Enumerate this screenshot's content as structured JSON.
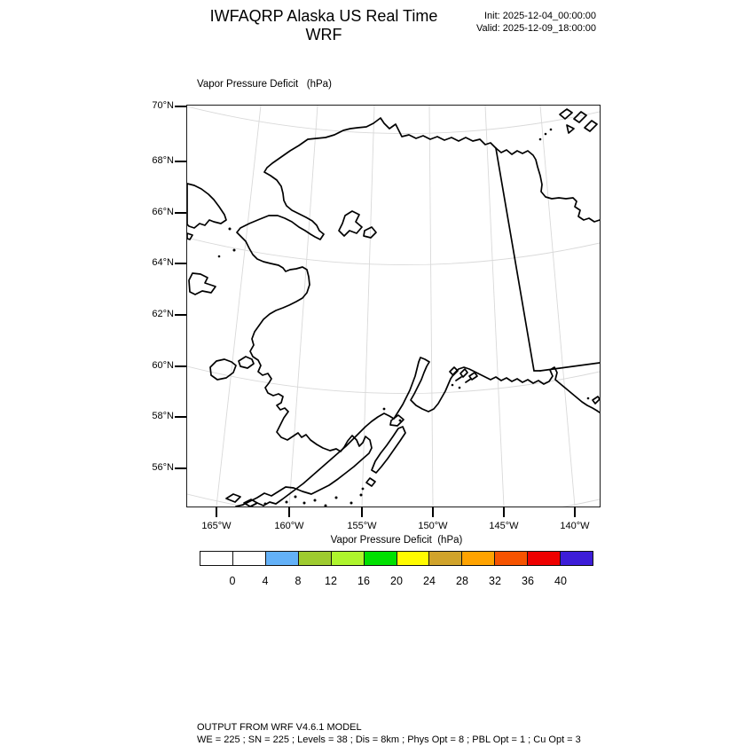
{
  "header": {
    "title": "IWFAQRP Alaska US Real Time WRF",
    "init_label": "Init: 2025-12-04_00:00:00",
    "valid_label": "Valid: 2025-12-09_18:00:00"
  },
  "map": {
    "title": "Vapor Pressure Deficit   (hPa)",
    "lat_labels": [
      "70°N",
      "68°N",
      "66°N",
      "64°N",
      "62°N",
      "60°N",
      "58°N",
      "56°N"
    ],
    "lon_labels": [
      "165°W",
      "160°W",
      "155°W",
      "150°W",
      "145°W",
      "140°W"
    ],
    "region": "Alaska",
    "coastline_color": "#000000",
    "graticule_color": "#d9d9d9"
  },
  "colorbar": {
    "label": "Vapor Pressure Deficit  (hPa)",
    "tick_values": [
      "0",
      "4",
      "8",
      "12",
      "16",
      "20",
      "24",
      "28",
      "32",
      "36",
      "40"
    ],
    "colors": [
      "#ffffff",
      "#ffffff",
      "#63b1f8",
      "#9ecb2f",
      "#aef42d",
      "#00e000",
      "#fffb00",
      "#d0a32b",
      "#ffa300",
      "#f65300",
      "#ee0000",
      "#3d1dd8"
    ]
  },
  "footer": {
    "line1": "OUTPUT FROM WRF V4.6.1 MODEL",
    "line2": "WE = 225 ; SN = 225 ; Levels = 38 ; Dis = 8km ; Phys Opt = 8 ; PBL Opt = 1 ; Cu Opt = 3"
  }
}
